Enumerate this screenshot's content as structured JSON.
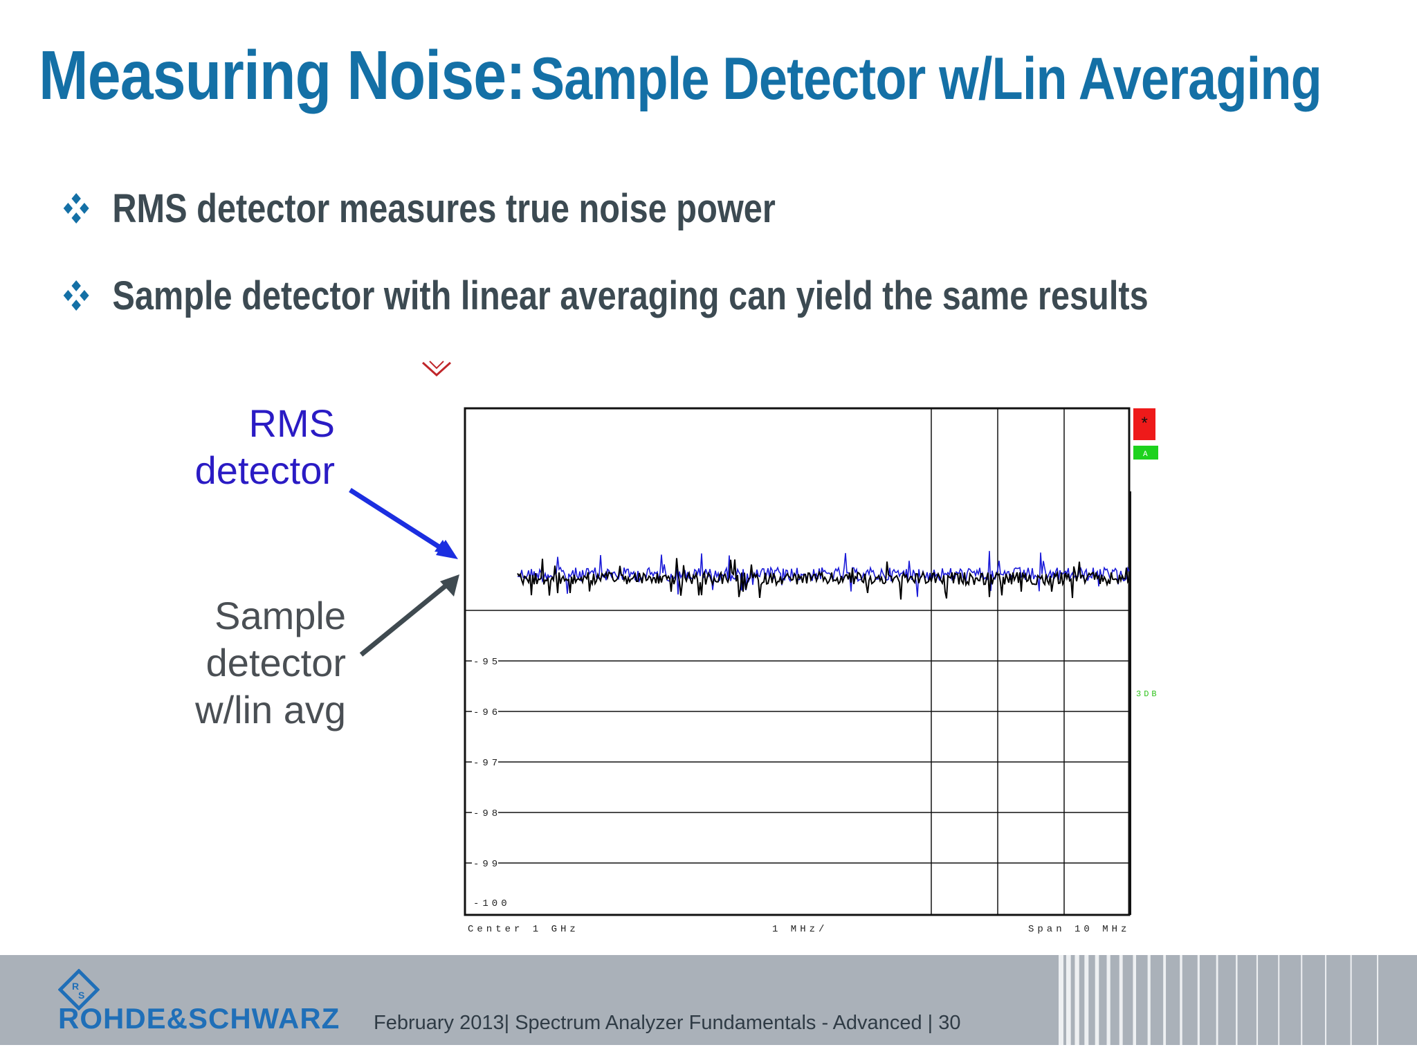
{
  "slide": {
    "title_main": "Measuring Noise:",
    "title_sub": "Sample Detector w/Lin Averaging",
    "bullets": [
      "RMS detector measures true noise power",
      "Sample detector with linear averaging can yield the same results"
    ],
    "labels": {
      "rms": [
        "RMS",
        "detector"
      ],
      "sample": [
        "Sample",
        "detector",
        "w/lin avg"
      ]
    },
    "colors": {
      "title": "#1470a6",
      "bullet_text": "#3c4a52",
      "bullet_icon": "#1470a6",
      "rms": "#2a1bc4",
      "sample": "#4a4f54"
    }
  },
  "instrument": {
    "y_tick_labels": [
      "-95",
      "-96",
      "-97",
      "-98",
      "-99",
      "-100"
    ],
    "bottom_labels": {
      "center": "Center  1 GHz",
      "div": "1 MHz/",
      "span": "Span  10 MHz"
    },
    "side_tags": {
      "star": "*",
      "trace": "A",
      "db": "3DB"
    },
    "icons": {
      "marker": "marker-chevron-icon",
      "bullet": "diamond-bullet-icon"
    }
  },
  "footer": {
    "logo_text": "ROHDE&SCHWARZ",
    "emblem_text": "R&S",
    "text": "February 2013|  Spectrum Analyzer Fundamentals - Advanced  |  30"
  }
}
